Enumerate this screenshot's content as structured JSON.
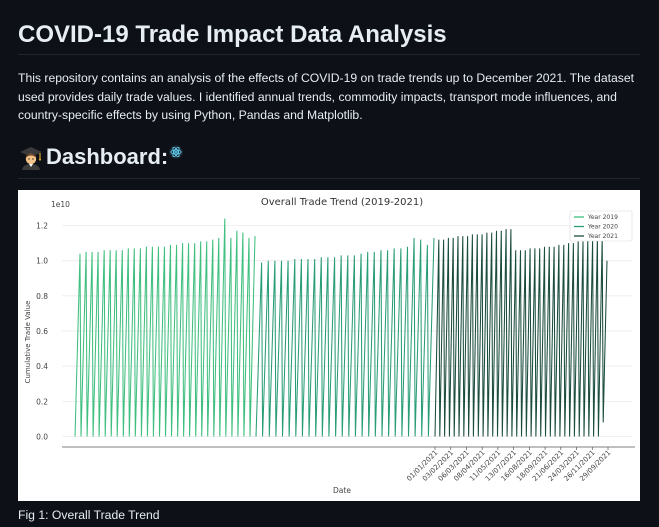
{
  "page": {
    "title": "COVID-19 Trade Impact Data Analysis",
    "intro": "This repository contains an analysis of the effects of COVID-19 on trade trends up to December 2021. The dataset used provides daily trade values. I identified annual trends, commodity impacts, transport mode influences, and country-specific effects by using Python, Pandas and Matplotlib.",
    "dashboard_heading": "Dashboard:",
    "dashboard_icons": [
      "student-icon",
      "react-icon"
    ],
    "figure_caption": "Fig 1: Overall Trade Trend"
  },
  "chart_data": {
    "type": "line",
    "title": "Overall Trade Trend (2019-2021)",
    "xlabel": "Date",
    "ylabel": "Cumulative Trade Value",
    "y_offset_label": "1e10",
    "ylim": [
      -0.06,
      1.3
    ],
    "y_ticks": [
      0.0,
      0.2,
      0.4,
      0.6,
      0.8,
      1.0,
      1.2
    ],
    "y_tick_labels": [
      "0.0",
      "0.2",
      "0.4",
      "0.6",
      "0.8",
      "1.0",
      "1.2"
    ],
    "x_tick_labels": [
      "01/01/2021",
      "03/02/2021",
      "06/03/2021",
      "08/04/2021",
      "11/05/2021",
      "13/07/2021",
      "16/08/2021",
      "18/09/2021",
      "21/06/2021",
      "24/03/2021",
      "26/11/2021",
      "29/09/2021"
    ],
    "grid": true,
    "legend_position": "top-right",
    "cycle_note": "values rise within each month and drop back to ~0.0 at every month start",
    "series": [
      {
        "name": "Year 2019",
        "color": "#3fbf7f",
        "monthly_peaks": [
          1.04,
          1.05,
          1.05,
          1.05,
          1.06,
          1.06,
          1.06,
          1.06,
          1.07,
          1.07,
          1.07,
          1.08,
          1.08,
          1.08,
          1.08,
          1.09,
          1.09,
          1.1,
          1.1,
          1.1,
          1.11,
          1.11,
          1.12,
          1.13,
          1.24,
          1.13,
          1.17,
          1.16,
          1.13,
          1.14
        ],
        "monthly_starts": [
          0.0,
          0.0,
          0.0,
          0.0,
          0.0,
          0.0,
          0.0,
          0.0,
          0.0,
          0.0,
          0.0,
          0.0,
          0.0,
          0.0,
          0.0,
          0.0,
          0.0,
          0.0,
          0.0,
          0.0,
          0.0,
          0.0,
          0.0,
          0.0,
          0.0,
          0.0,
          0.0,
          0.0,
          0.0,
          0.0
        ]
      },
      {
        "name": "Year 2020",
        "color": "#2a9d78",
        "monthly_peaks": [
          0.99,
          1.0,
          1.0,
          1.0,
          1.0,
          1.01,
          1.01,
          1.01,
          1.01,
          1.02,
          1.02,
          1.02,
          1.03,
          1.03,
          1.03,
          1.04,
          1.05,
          1.05,
          1.06,
          1.06,
          1.07,
          1.07,
          1.08,
          1.13,
          1.12,
          1.09,
          1.13
        ],
        "monthly_starts": [
          0.0,
          0.0,
          0.0,
          0.0,
          0.0,
          0.0,
          0.0,
          0.0,
          0.0,
          0.0,
          0.0,
          0.0,
          0.0,
          0.0,
          0.0,
          0.0,
          0.0,
          0.0,
          0.0,
          0.0,
          0.0,
          0.0,
          0.0,
          0.0,
          0.0,
          0.0,
          0.0
        ]
      },
      {
        "name": "Year 2021",
        "color": "#1b4d3e",
        "monthly_peaks": [
          1.12,
          1.12,
          1.13,
          1.13,
          1.14,
          1.14,
          1.14,
          1.15,
          1.15,
          1.15,
          1.16,
          1.16,
          1.17,
          1.17,
          1.18,
          1.18,
          1.06,
          1.06,
          1.06,
          1.07,
          1.07,
          1.07,
          1.08,
          1.08,
          1.08,
          1.09,
          1.09,
          1.1,
          1.1,
          1.11,
          1.11,
          1.12,
          1.12,
          1.13,
          1.13,
          1.0
        ],
        "monthly_starts": [
          0.0,
          0.0,
          0.0,
          0.0,
          0.0,
          0.0,
          0.0,
          0.0,
          0.0,
          0.0,
          0.0,
          0.0,
          0.0,
          0.0,
          0.0,
          0.0,
          0.0,
          0.0,
          0.0,
          0.0,
          0.0,
          0.0,
          0.0,
          0.0,
          0.0,
          0.0,
          0.0,
          0.0,
          0.0,
          0.0,
          0.0,
          0.0,
          0.0,
          0.0,
          0.0,
          0.08
        ]
      }
    ]
  }
}
